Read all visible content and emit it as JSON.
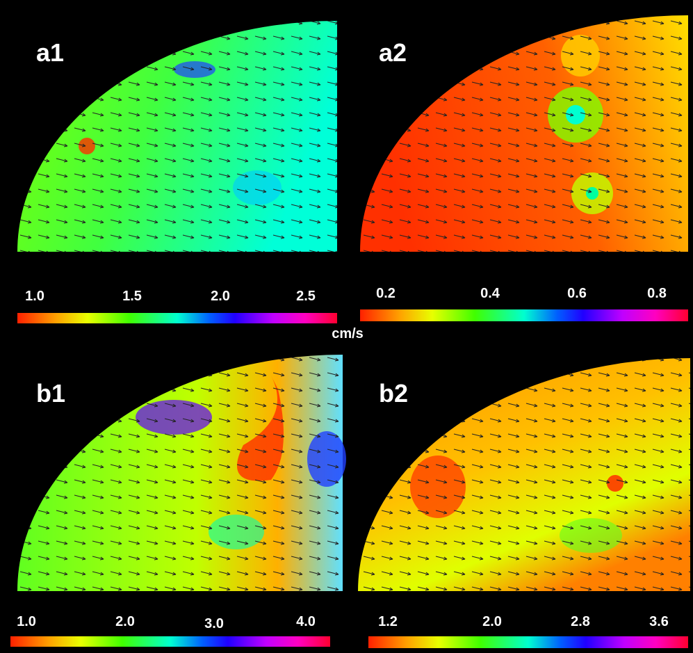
{
  "panels": [
    {
      "label": "a1",
      "colorbar_ticks": [
        "1.0",
        "1.5",
        "2.0",
        "2.5"
      ]
    },
    {
      "label": "a2",
      "colorbar_ticks": [
        "0.2",
        "0.4",
        "0.6",
        "0.8"
      ]
    },
    {
      "label": "b1",
      "colorbar_ticks": [
        "1.0",
        "2.0",
        "3.0",
        "4.0"
      ]
    },
    {
      "label": "b2",
      "colorbar_ticks": [
        "1.2",
        "2.0",
        "2.8",
        "3.6"
      ]
    }
  ],
  "unit": "cm/s"
}
